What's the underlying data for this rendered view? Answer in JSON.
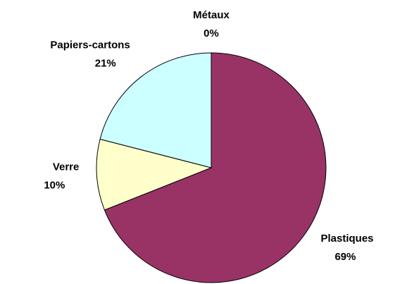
{
  "chart_data": {
    "type": "pie",
    "categories": [
      "Métaux",
      "Plastiques",
      "Verre",
      "Papiers-cartons"
    ],
    "values": [
      0,
      69,
      10,
      21
    ],
    "value_labels": [
      "0%",
      "69%",
      "10%",
      "21%"
    ],
    "colors": [
      "#9999ff",
      "#993366",
      "#ffffcc",
      "#ccffff"
    ]
  }
}
